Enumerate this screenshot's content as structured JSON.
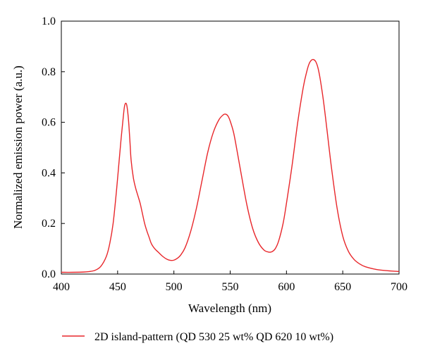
{
  "chart_data": {
    "type": "line",
    "title": "",
    "xlabel": "Wavelength (nm)",
    "ylabel": "Normalized emission power (a.u.)",
    "xlim": [
      400,
      700
    ],
    "ylim": [
      0.0,
      1.0
    ],
    "xticks": [
      "400",
      "450",
      "500",
      "550",
      "600",
      "650",
      "700"
    ],
    "yticks": [
      "0.0",
      "0.2",
      "0.4",
      "0.6",
      "0.8",
      "1.0"
    ],
    "grid": false,
    "legend_position": "bottom",
    "series": [
      {
        "name": "2D island-pattern (QD 530 25 wt% QD 620 10 wt%)",
        "color": "#e8272b",
        "x": [
          400,
          410,
          420,
          425,
          430,
          435,
          440,
          443,
          446,
          449,
          451,
          453,
          455,
          456,
          457,
          458,
          459,
          460,
          461,
          462,
          464,
          466,
          468,
          470,
          472,
          474,
          476,
          478,
          480,
          483,
          486,
          490,
          494,
          497,
          500,
          503,
          506,
          510,
          515,
          520,
          525,
          530,
          535,
          540,
          544,
          546,
          548,
          550,
          553,
          556,
          560,
          565,
          570,
          575,
          580,
          584,
          587,
          590,
          593,
          597,
          600,
          605,
          610,
          615,
          618,
          620,
          622,
          624,
          626,
          628,
          630,
          633,
          636,
          640,
          645,
          650,
          655,
          660,
          665,
          670,
          680,
          690,
          700
        ],
        "y": [
          0.007,
          0.007,
          0.008,
          0.01,
          0.015,
          0.03,
          0.07,
          0.12,
          0.2,
          0.33,
          0.43,
          0.53,
          0.62,
          0.66,
          0.675,
          0.67,
          0.64,
          0.59,
          0.52,
          0.45,
          0.38,
          0.34,
          0.31,
          0.28,
          0.24,
          0.2,
          0.17,
          0.145,
          0.12,
          0.1,
          0.087,
          0.07,
          0.058,
          0.054,
          0.055,
          0.062,
          0.075,
          0.105,
          0.17,
          0.26,
          0.37,
          0.48,
          0.56,
          0.61,
          0.63,
          0.632,
          0.625,
          0.605,
          0.56,
          0.49,
          0.39,
          0.27,
          0.18,
          0.125,
          0.095,
          0.087,
          0.088,
          0.1,
          0.13,
          0.2,
          0.28,
          0.43,
          0.6,
          0.74,
          0.8,
          0.83,
          0.845,
          0.848,
          0.84,
          0.815,
          0.77,
          0.68,
          0.57,
          0.42,
          0.26,
          0.15,
          0.09,
          0.058,
          0.04,
          0.029,
          0.018,
          0.013,
          0.01
        ]
      }
    ]
  }
}
